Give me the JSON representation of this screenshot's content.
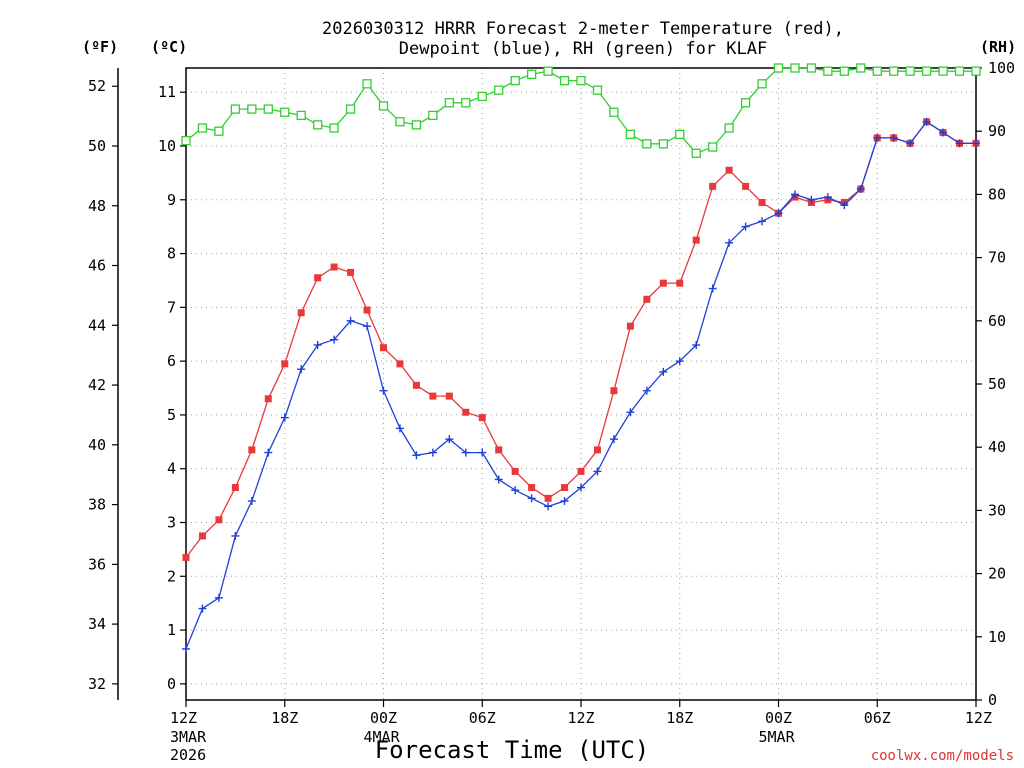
{
  "chart_data": {
    "type": "line",
    "title_line1": "2026030312 HRRR Forecast 2-meter Temperature (red),",
    "title_line2": "Dewpoint (blue), RH (green) for KLAF",
    "xlabel": "Forecast Time (UTC)",
    "credit": "coolwx.com/models",
    "unit_f": "(ºF)",
    "unit_c": "(ºC)",
    "unit_rh": "(RH)",
    "x_ticks": [
      {
        "hour": 0,
        "label": "12Z",
        "sub1": "3MAR",
        "sub2": "2026"
      },
      {
        "hour": 6,
        "label": "18Z",
        "sub1": "",
        "sub2": ""
      },
      {
        "hour": 12,
        "label": "00Z",
        "sub1": "4MAR",
        "sub2": ""
      },
      {
        "hour": 18,
        "label": "06Z",
        "sub1": "",
        "sub2": ""
      },
      {
        "hour": 24,
        "label": "12Z",
        "sub1": "",
        "sub2": ""
      },
      {
        "hour": 30,
        "label": "18Z",
        "sub1": "",
        "sub2": ""
      },
      {
        "hour": 36,
        "label": "00Z",
        "sub1": "5MAR",
        "sub2": ""
      },
      {
        "hour": 42,
        "label": "06Z",
        "sub1": "",
        "sub2": ""
      },
      {
        "hour": 48,
        "label": "12Z",
        "sub1": "",
        "sub2": ""
      }
    ],
    "xlim": [
      0,
      48
    ],
    "celsius_axis": {
      "ylim": [
        -0.3,
        11.45
      ],
      "ticks": [
        "0",
        "1",
        "2",
        "3",
        "4",
        "5",
        "6",
        "7",
        "8",
        "9",
        "10",
        "11"
      ]
    },
    "fahrenheit_axis": {
      "ticks": [
        "32",
        "34",
        "36",
        "38",
        "40",
        "42",
        "44",
        "46",
        "48",
        "50",
        "52"
      ]
    },
    "rh_axis": {
      "ylim": [
        0,
        100
      ],
      "ticks": [
        "0",
        "10",
        "20",
        "30",
        "40",
        "50",
        "60",
        "70",
        "80",
        "90",
        "100"
      ]
    },
    "series": [
      {
        "name": "Temperature",
        "unit": "C",
        "color": "#e8383a",
        "marker": "filled-square",
        "values": [
          2.35,
          2.75,
          3.05,
          3.65,
          4.35,
          5.3,
          5.95,
          6.9,
          7.55,
          7.75,
          7.65,
          6.95,
          6.25,
          5.95,
          5.55,
          5.35,
          5.35,
          5.05,
          4.95,
          4.35,
          3.95,
          3.65,
          3.45,
          3.65,
          3.95,
          4.35,
          5.45,
          6.65,
          7.15,
          7.45,
          7.45,
          8.25,
          9.25,
          9.55,
          9.25,
          8.95,
          8.75,
          9.05,
          8.95,
          9.0,
          8.95,
          9.2,
          10.15,
          10.15,
          10.05,
          10.45,
          10.25,
          10.05,
          10.05
        ]
      },
      {
        "name": "Dewpoint",
        "unit": "C",
        "color": "#2040d8",
        "marker": "plus",
        "values": [
          0.65,
          1.4,
          1.6,
          2.75,
          3.4,
          4.3,
          4.95,
          5.85,
          6.3,
          6.4,
          6.75,
          6.65,
          5.45,
          4.75,
          4.25,
          4.3,
          4.55,
          4.3,
          4.3,
          3.8,
          3.6,
          3.45,
          3.3,
          3.4,
          3.65,
          3.95,
          4.55,
          5.05,
          5.45,
          5.8,
          6.0,
          6.3,
          7.35,
          8.2,
          8.5,
          8.6,
          8.75,
          9.1,
          9.0,
          9.05,
          8.9,
          9.2,
          10.15,
          10.15,
          10.05,
          10.45,
          10.25,
          10.05,
          10.05
        ]
      },
      {
        "name": "RH",
        "unit": "%",
        "color": "#30d030",
        "marker": "open-square",
        "values": [
          88.5,
          90.5,
          90.0,
          93.5,
          93.5,
          93.5,
          93.0,
          92.5,
          91.0,
          90.5,
          93.5,
          97.5,
          94.0,
          91.5,
          91.0,
          92.5,
          94.5,
          94.5,
          95.5,
          96.5,
          98.0,
          99.0,
          99.5,
          98.0,
          98.0,
          96.5,
          93.0,
          89.5,
          88.0,
          88.0,
          89.5,
          86.5,
          87.5,
          90.5,
          94.5,
          97.5,
          100,
          100,
          100,
          99.5,
          99.5,
          100,
          99.5,
          99.5,
          99.5,
          99.5,
          99.5,
          99.5,
          99.5
        ]
      }
    ]
  }
}
